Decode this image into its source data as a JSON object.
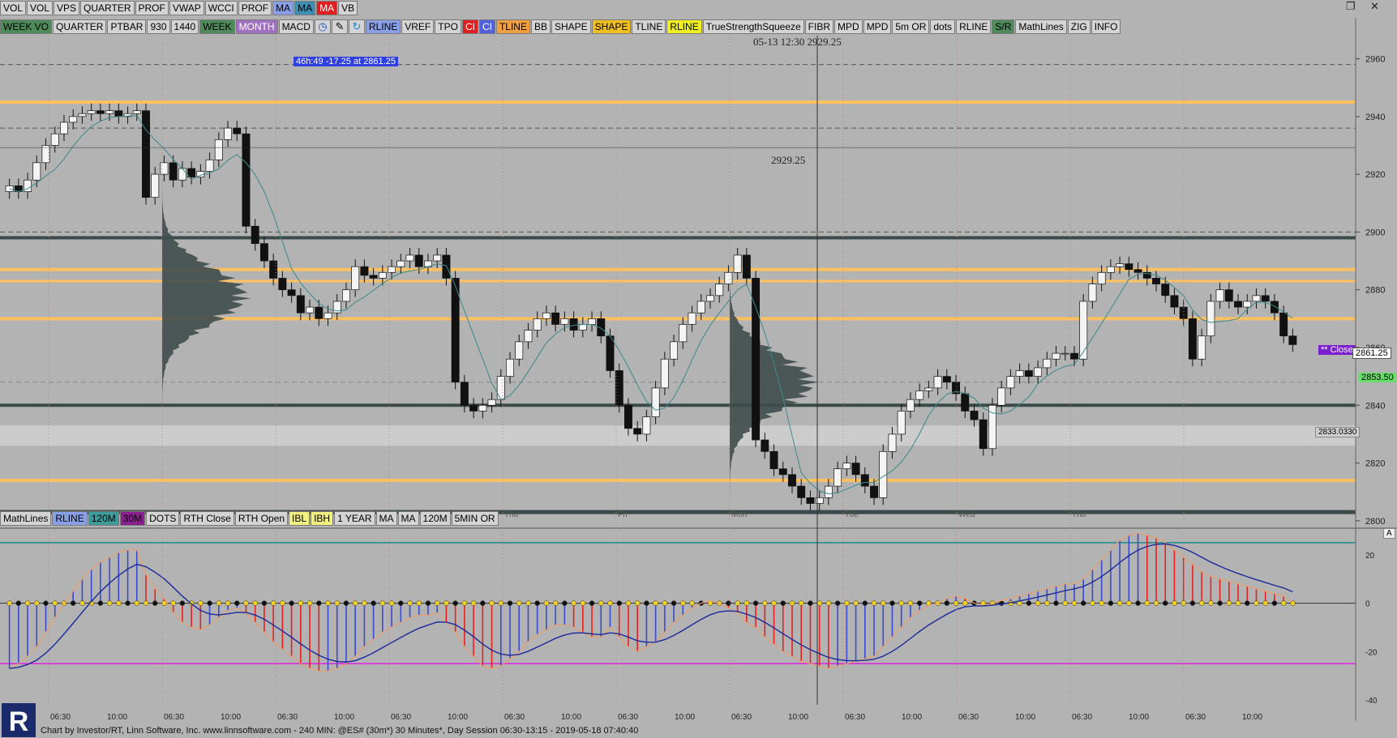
{
  "toolbar_top": [
    {
      "label": "VOL",
      "bg": "#d4d4d4",
      "color": "#000"
    },
    {
      "label": "VOL",
      "bg": "#d4d4d4",
      "color": "#000"
    },
    {
      "label": "VPS",
      "bg": "#d4d4d4",
      "color": "#000"
    },
    {
      "label": "QUARTER",
      "bg": "#d4d4d4",
      "color": "#000"
    },
    {
      "label": "PROF",
      "bg": "#d4d4d4",
      "color": "#000"
    },
    {
      "label": "VWAP",
      "bg": "#d4d4d4",
      "color": "#000"
    },
    {
      "label": "WCCI",
      "bg": "#d4d4d4",
      "color": "#000"
    },
    {
      "label": "PROF",
      "bg": "#d4d4d4",
      "color": "#000"
    },
    {
      "label": "MA",
      "bg": "#8aa0e6",
      "color": "#000"
    },
    {
      "label": "MA",
      "bg": "#3d8fb2",
      "color": "#000"
    },
    {
      "label": "MA",
      "bg": "#e02020",
      "color": "#fff"
    },
    {
      "label": "VB",
      "bg": "#d4d4d4",
      "color": "#000"
    }
  ],
  "toolbar_second": [
    {
      "label": "WEEK VO",
      "bg": "#4e8a5a",
      "color": "#000"
    },
    {
      "label": "QUARTER",
      "bg": "#d4d4d4",
      "color": "#000"
    },
    {
      "label": "PTBAR",
      "bg": "#d4d4d4",
      "color": "#000"
    },
    {
      "label": "930",
      "bg": "#d4d4d4",
      "color": "#000"
    },
    {
      "label": "1440",
      "bg": "#d4d4d4",
      "color": "#000"
    },
    {
      "label": "WEEK",
      "bg": "#4e8a5a",
      "color": "#000"
    },
    {
      "label": "MONTH",
      "bg": "#a070c0",
      "color": "#fff"
    },
    {
      "label": "MACD",
      "bg": "#d4d4d4",
      "color": "#000"
    },
    {
      "icon": "clock-icon",
      "glyph": "◷",
      "bg": "#d4d4d4",
      "color": "#1a4fd0"
    },
    {
      "icon": "pencil-icon",
      "glyph": "✎",
      "bg": "#d4d4d4",
      "color": "#000"
    },
    {
      "icon": "refresh-icon",
      "glyph": "↻",
      "bg": "#d4d4d4",
      "color": "#1a8ad0"
    },
    {
      "label": "RLINE",
      "bg": "#8aa0e6",
      "color": "#000"
    },
    {
      "label": "VREF",
      "bg": "#d4d4d4",
      "color": "#000"
    },
    {
      "label": "TPO",
      "bg": "#d4d4d4",
      "color": "#000"
    },
    {
      "label": "CI",
      "bg": "#e02020",
      "color": "#fff"
    },
    {
      "label": "CI",
      "bg": "#5060e0",
      "color": "#fff"
    },
    {
      "label": "TLINE",
      "bg": "#f0a040",
      "color": "#000"
    },
    {
      "label": "BB",
      "bg": "#d4d4d4",
      "color": "#000"
    },
    {
      "label": "SHAPE",
      "bg": "#d4d4d4",
      "color": "#000"
    },
    {
      "label": "SHAPE",
      "bg": "#f0c020",
      "color": "#000"
    },
    {
      "label": "TLINE",
      "bg": "#d4d4d4",
      "color": "#000"
    },
    {
      "label": "RLINE",
      "bg": "#f0f020",
      "color": "#000"
    },
    {
      "label": "TrueStrengthSqueeze",
      "bg": "#d4d4d4",
      "color": "#000"
    },
    {
      "label": "FIBR",
      "bg": "#d4d4d4",
      "color": "#000"
    },
    {
      "label": "MPD",
      "bg": "#d4d4d4",
      "color": "#000"
    },
    {
      "label": "MPD",
      "bg": "#d4d4d4",
      "color": "#000"
    },
    {
      "label": "5m OR",
      "bg": "#d4d4d4",
      "color": "#000"
    },
    {
      "label": "dots",
      "bg": "#d4d4d4",
      "color": "#000"
    },
    {
      "label": "RLINE",
      "bg": "#d4d4d4",
      "color": "#000"
    },
    {
      "label": "S/R",
      "bg": "#4e8a5a",
      "color": "#000"
    },
    {
      "label": "MathLines",
      "bg": "#d4d4d4",
      "color": "#000"
    },
    {
      "label": "ZIG",
      "bg": "#d4d4d4",
      "color": "#000"
    },
    {
      "label": "INFO",
      "bg": "#d4d4d4",
      "color": "#000"
    }
  ],
  "toolbar_bottom": [
    {
      "label": "MathLines",
      "bg": "#d4d4d4",
      "color": "#000"
    },
    {
      "label": "RLINE",
      "bg": "#8aa0e6",
      "color": "#000"
    },
    {
      "label": "120M",
      "bg": "#3d9b9b",
      "color": "#000"
    },
    {
      "label": "30M",
      "bg": "#8a2090",
      "color": "#000"
    },
    {
      "label": "DOTS",
      "bg": "#d4d4d4",
      "color": "#000"
    },
    {
      "label": "RTH Close",
      "bg": "#d4d4d4",
      "color": "#000"
    },
    {
      "label": "RTH Open",
      "bg": "#d4d4d4",
      "color": "#000"
    },
    {
      "label": "IBL",
      "bg": "#f0f080",
      "color": "#000"
    },
    {
      "label": "IBH",
      "bg": "#f0f080",
      "color": "#000"
    },
    {
      "label": "1 YEAR",
      "bg": "#d4d4d4",
      "color": "#000"
    },
    {
      "label": "MA",
      "bg": "#d4d4d4",
      "color": "#000"
    },
    {
      "label": "MA",
      "bg": "#d4d4d4",
      "color": "#000"
    },
    {
      "label": "120M",
      "bg": "#d4d4d4",
      "color": "#000"
    },
    {
      "label": "5MIN OR",
      "bg": "#d4d4d4",
      "color": "#000"
    }
  ],
  "annotations": {
    "crosshair_readout": "05-13 12:30  2929.25",
    "crosshair_price": "2929.25",
    "info_box": "46h:49  -17.25 at 2861.25",
    "close_tag": "** Close",
    "last_price": "2861.25",
    "level_tag_green": "2853.50",
    "level_tag_gray": "2833.0330",
    "macd_a_label": "A"
  },
  "day_labels": [
    "Thu",
    "Fri",
    "Mon",
    "Tue",
    "Wed",
    "Thu"
  ],
  "chart_data": {
    "type": "candlestick",
    "title": "",
    "symbol": "@ES#",
    "interval": "30 Minutes",
    "price_axis": {
      "ticks": [
        2960,
        2940,
        2920,
        2900,
        2880,
        2860,
        2840,
        2820,
        2800
      ],
      "ylim": [
        2798,
        2968
      ]
    },
    "macd_axis": {
      "ticks": [
        20,
        0,
        -20,
        -40
      ],
      "ylim": [
        -42,
        30
      ]
    },
    "time_ticks": [
      "06:30",
      "10:00",
      "06:30",
      "10:00",
      "06:30",
      "10:00",
      "06:30",
      "10:00",
      "06:30",
      "10:00",
      "06:30",
      "10:00",
      "06:30",
      "10:00",
      "06:30",
      "10:00",
      "06:30",
      "10:00",
      "06:30",
      "10:00",
      "06:30",
      "10:00"
    ],
    "series_close": [
      2916,
      2914,
      2918,
      2924,
      2930,
      2934,
      2938,
      2940,
      2941,
      2942,
      2941,
      2942,
      2940,
      2941,
      2942,
      2912,
      2920,
      2924,
      2918,
      2922,
      2919,
      2921,
      2925,
      2932,
      2936,
      2934,
      2902,
      2896,
      2890,
      2884,
      2880,
      2878,
      2872,
      2874,
      2870,
      2872,
      2876,
      2880,
      2888,
      2885,
      2884,
      2886,
      2888,
      2890,
      2892,
      2888,
      2890,
      2892,
      2884,
      2848,
      2840,
      2838,
      2840,
      2842,
      2850,
      2856,
      2862,
      2866,
      2870,
      2872,
      2868,
      2870,
      2866,
      2868,
      2870,
      2864,
      2852,
      2840,
      2832,
      2830,
      2836,
      2846,
      2856,
      2862,
      2868,
      2872,
      2876,
      2878,
      2882,
      2886,
      2892,
      2884,
      2828,
      2824,
      2818,
      2816,
      2812,
      2808,
      2806,
      2808,
      2812,
      2818,
      2820,
      2816,
      2812,
      2808,
      2824,
      2830,
      2838,
      2842,
      2845,
      2846,
      2850,
      2848,
      2844,
      2838,
      2835,
      2825,
      2840,
      2846,
      2850,
      2852,
      2850,
      2853,
      2856,
      2858,
      2858,
      2856,
      2876,
      2882,
      2886,
      2888,
      2889,
      2887,
      2886,
      2884,
      2882,
      2878,
      2874,
      2870,
      2856,
      2864,
      2876,
      2880,
      2876,
      2874,
      2876,
      2878,
      2876,
      2872,
      2864,
      2861
    ],
    "macd_values": [
      -27,
      -25,
      -22,
      -18,
      -12,
      -6,
      0,
      5,
      10,
      14,
      17,
      19,
      21,
      22,
      22,
      12,
      6,
      2,
      -4,
      -8,
      -10,
      -11,
      -9,
      -6,
      -3,
      -2,
      -4,
      -8,
      -12,
      -16,
      -19,
      -22,
      -25,
      -27,
      -28,
      -28,
      -27,
      -25,
      -22,
      -18,
      -15,
      -12,
      -10,
      -8,
      -6,
      -5,
      -5,
      -4,
      -8,
      -12,
      -18,
      -22,
      -26,
      -27,
      -26,
      -23,
      -20,
      -16,
      -13,
      -11,
      -9,
      -9,
      -10,
      -12,
      -14,
      -14,
      -10,
      -14,
      -18,
      -20,
      -18,
      -16,
      -12,
      -8,
      -5,
      -2,
      0,
      1,
      0,
      -2,
      -4,
      -8,
      -10,
      -14,
      -17,
      -20,
      -22,
      -24,
      -25,
      -26,
      -27,
      -26,
      -25,
      -24,
      -23,
      -22,
      -18,
      -14,
      -10,
      -6,
      -3,
      -1,
      0,
      2,
      3,
      2,
      0,
      -1,
      0,
      1,
      2,
      3,
      4,
      5,
      6,
      7,
      8,
      8,
      10,
      14,
      18,
      22,
      26,
      28,
      29,
      28,
      27,
      25,
      22,
      19,
      16,
      13,
      11,
      10,
      9,
      8,
      7,
      6,
      5,
      4,
      3,
      0
    ]
  }
}
